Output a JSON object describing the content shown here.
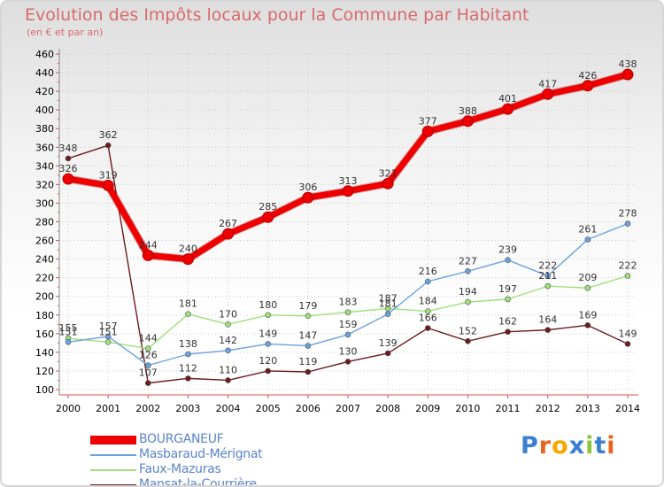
{
  "chart_data": {
    "type": "line",
    "title": "Evolution des Impôts locaux pour la Commune par Habitant",
    "subtitle": "(en € et par an)",
    "xlabel": "",
    "ylabel": "",
    "categories": [
      "2000",
      "2001",
      "2002",
      "2003",
      "2004",
      "2005",
      "2006",
      "2007",
      "2008",
      "2009",
      "2010",
      "2011",
      "2012",
      "2013",
      "2014"
    ],
    "ylim": [
      100,
      460
    ],
    "yticks": [
      100,
      120,
      140,
      160,
      180,
      200,
      220,
      240,
      260,
      280,
      300,
      320,
      340,
      360,
      380,
      400,
      420,
      440,
      460
    ],
    "grid": true,
    "legend_position": "bottom-left",
    "series": [
      {
        "name": "BOURGANEUF",
        "color": "#ee0000",
        "values": [
          326,
          319,
          244,
          240,
          267,
          285,
          306,
          313,
          321,
          377,
          388,
          401,
          417,
          426,
          438
        ]
      },
      {
        "name": "Masbaraud-Mérignat",
        "color": "#6aa3dc",
        "values": [
          151,
          157,
          126,
          138,
          142,
          149,
          147,
          159,
          181,
          216,
          227,
          239,
          222,
          261,
          278
        ]
      },
      {
        "name": "Faux-Mazuras",
        "color": "#9ee07a",
        "values": [
          155,
          151,
          144,
          181,
          170,
          180,
          179,
          183,
          187,
          184,
          194,
          197,
          211,
          209,
          222
        ]
      },
      {
        "name": "Mansat-la-Courrière",
        "color": "#6b1b1b",
        "values": [
          348,
          362,
          107,
          112,
          110,
          120,
          119,
          130,
          139,
          166,
          152,
          162,
          164,
          169,
          149
        ]
      }
    ]
  },
  "logo": {
    "text": "Proxiti",
    "letters": [
      "P",
      "r",
      "o",
      "x",
      "i",
      "t",
      "i"
    ],
    "colors": [
      "#3b7fd0",
      "#e8641c",
      "#f5a800",
      "#3b7fd0",
      "#8cc63f",
      "#3b7fd0",
      "#e8641c"
    ]
  }
}
